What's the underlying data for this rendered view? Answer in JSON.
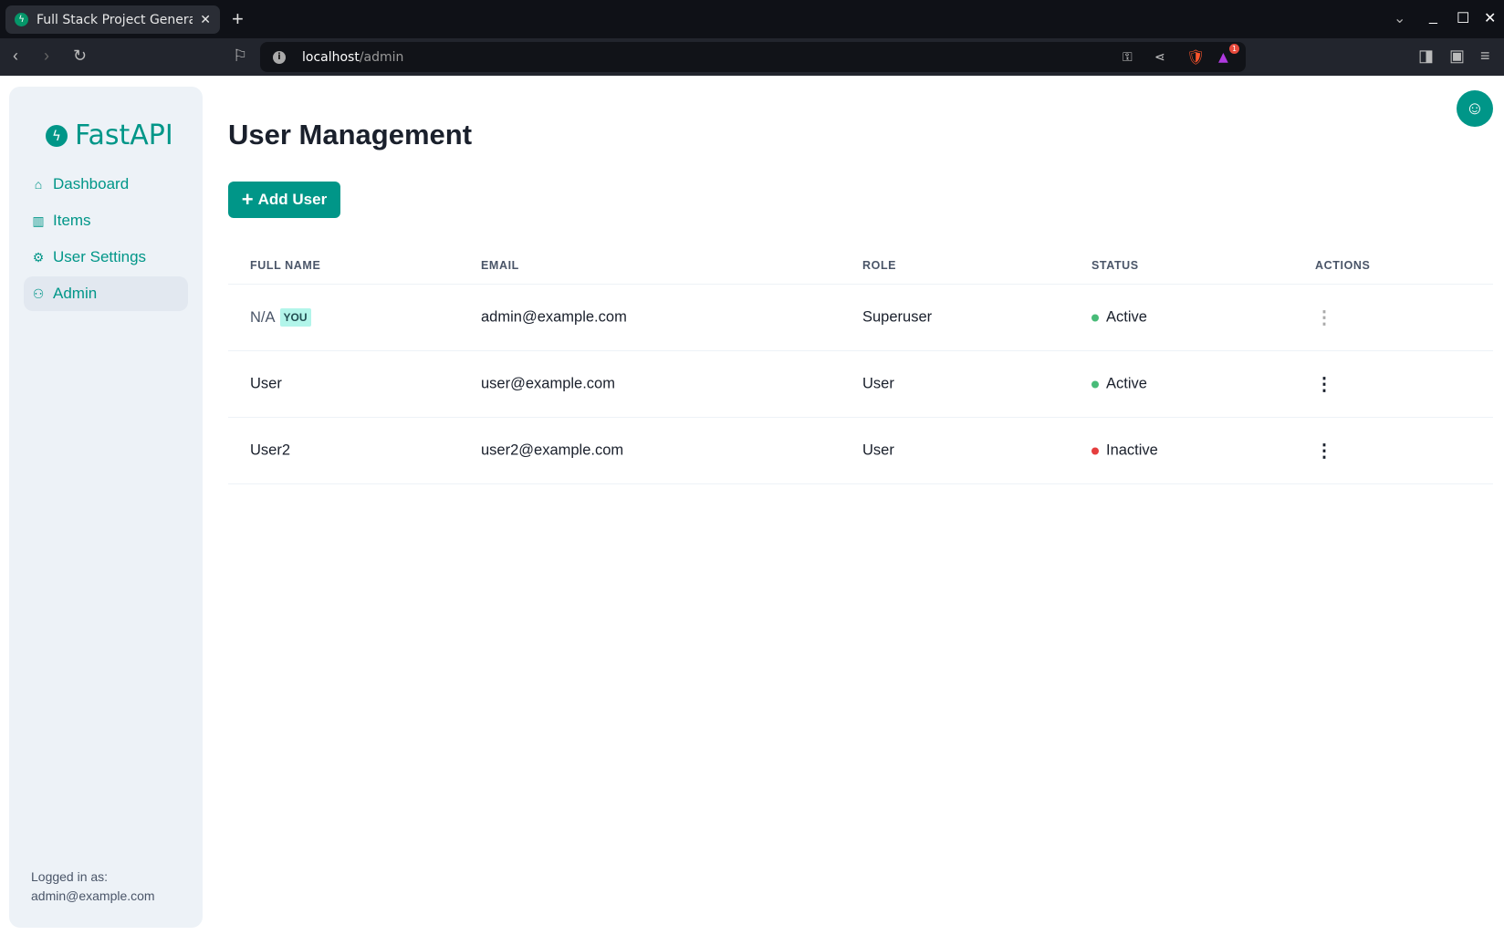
{
  "browser": {
    "tab_title": "Full Stack Project Generator",
    "url_host": "localhost",
    "url_path": "/admin",
    "badge_count": "1"
  },
  "sidebar": {
    "logo": "FastAPI",
    "items": [
      {
        "label": "Dashboard",
        "icon": "home-icon"
      },
      {
        "label": "Items",
        "icon": "briefcase-icon"
      },
      {
        "label": "User Settings",
        "icon": "gear-icon"
      },
      {
        "label": "Admin",
        "icon": "users-icon",
        "active": true
      }
    ],
    "logged_in_label": "Logged in as:",
    "logged_in_email": "admin@example.com"
  },
  "main": {
    "title": "User Management",
    "add_button": "Add User",
    "columns": [
      "FULL NAME",
      "EMAIL",
      "ROLE",
      "STATUS",
      "ACTIONS"
    ],
    "rows": [
      {
        "name": "N/A",
        "badge": "YOU",
        "email": "admin@example.com",
        "role": "Superuser",
        "status": "Active",
        "status_color": "#48bb78",
        "actions_disabled": true
      },
      {
        "name": "User",
        "email": "user@example.com",
        "role": "User",
        "status": "Active",
        "status_color": "#48bb78"
      },
      {
        "name": "User2",
        "email": "user2@example.com",
        "role": "User",
        "status": "Inactive",
        "status_color": "#e53e3e"
      }
    ]
  },
  "colors": {
    "accent": "#009688"
  }
}
